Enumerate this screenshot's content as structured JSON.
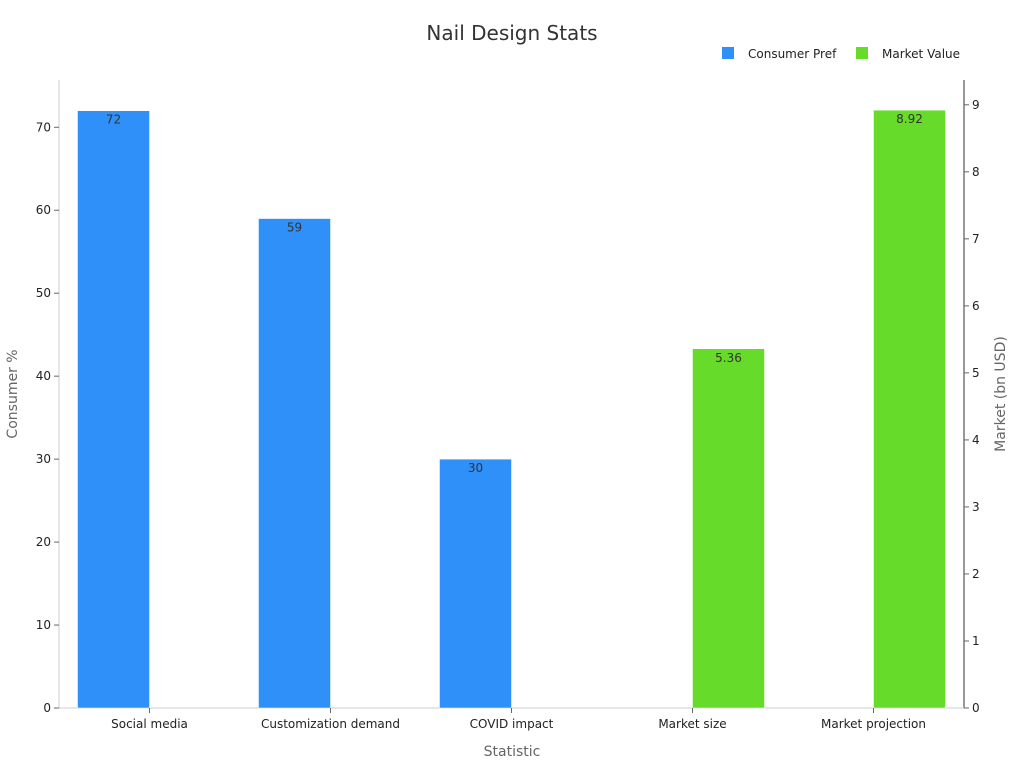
{
  "chart_data": {
    "type": "bar",
    "title": "Nail Design Stats",
    "xlabel": "Statistic",
    "ylabel_left": "Consumer %",
    "ylabel_right": "Market (bn USD)",
    "categories": [
      "Social media",
      "Customization demand",
      "COVID impact",
      "Market size",
      "Market projection"
    ],
    "ylim_left": [
      0,
      75.7
    ],
    "ylim_right": [
      0,
      9.37
    ],
    "yticks_left": [
      0,
      10,
      20,
      30,
      40,
      50,
      60,
      70
    ],
    "yticks_right": [
      0,
      1,
      2,
      3,
      4,
      5,
      6,
      7,
      8,
      9
    ],
    "legend_position": "top-right",
    "series": [
      {
        "name": "Consumer Pref",
        "color": "#2e90f8",
        "axis": "left",
        "values": [
          72,
          59,
          30,
          null,
          null
        ],
        "labels": [
          "72",
          "59",
          "30",
          "",
          ""
        ]
      },
      {
        "name": "Market Value",
        "color": "#66db29",
        "axis": "right",
        "values": [
          null,
          null,
          null,
          5.36,
          8.92
        ],
        "labels": [
          "",
          "",
          "",
          "5.36",
          "8.92"
        ]
      }
    ]
  }
}
